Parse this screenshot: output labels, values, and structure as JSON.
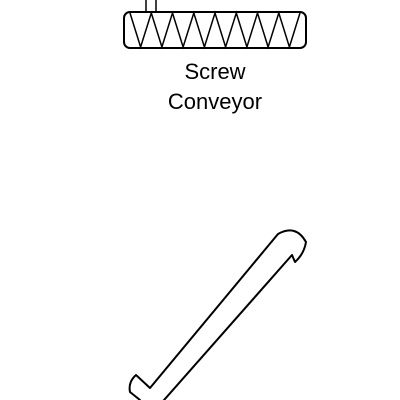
{
  "diagram": {
    "background_color": "#ffffff",
    "stroke_color": "#000000",
    "screw_conveyor": {
      "label_line1": "Screw",
      "label_line2": "Conveyor",
      "flight_count": 8
    },
    "hook_symbol": {
      "description_visible": false
    }
  }
}
